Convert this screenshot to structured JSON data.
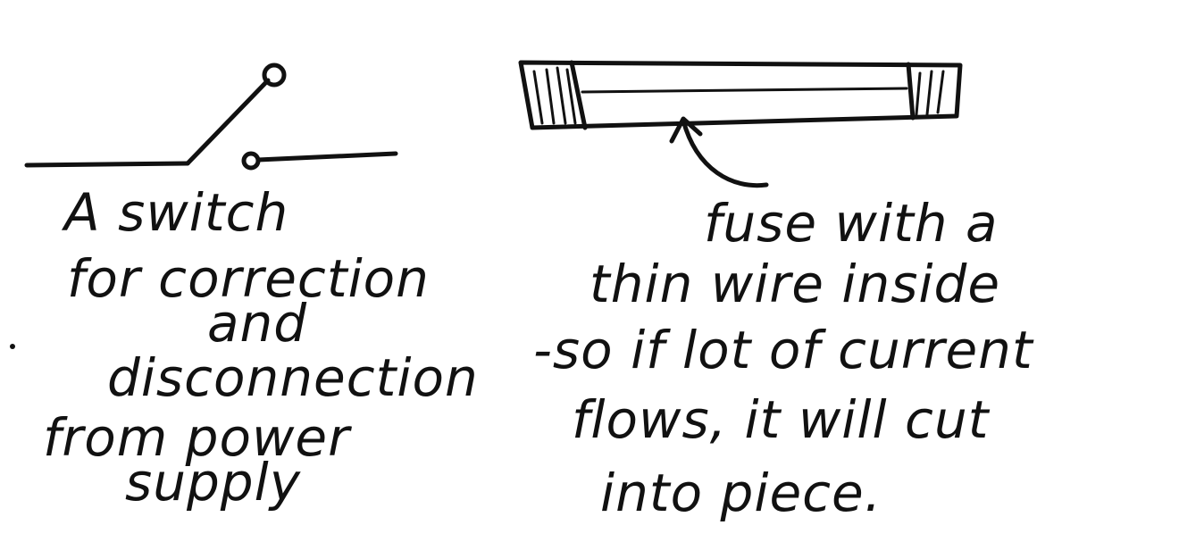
{
  "switch_caption": {
    "line1": "A switch",
    "line2": "for correction",
    "line3": "and",
    "line4": "disconnection",
    "line5": "from power",
    "line6": "supply"
  },
  "fuse_caption": {
    "line1": "fuse with a",
    "line2": "thin wire inside",
    "line3": "-so if lot of current",
    "line4": "flows, it will cut",
    "line5": "into piece."
  }
}
